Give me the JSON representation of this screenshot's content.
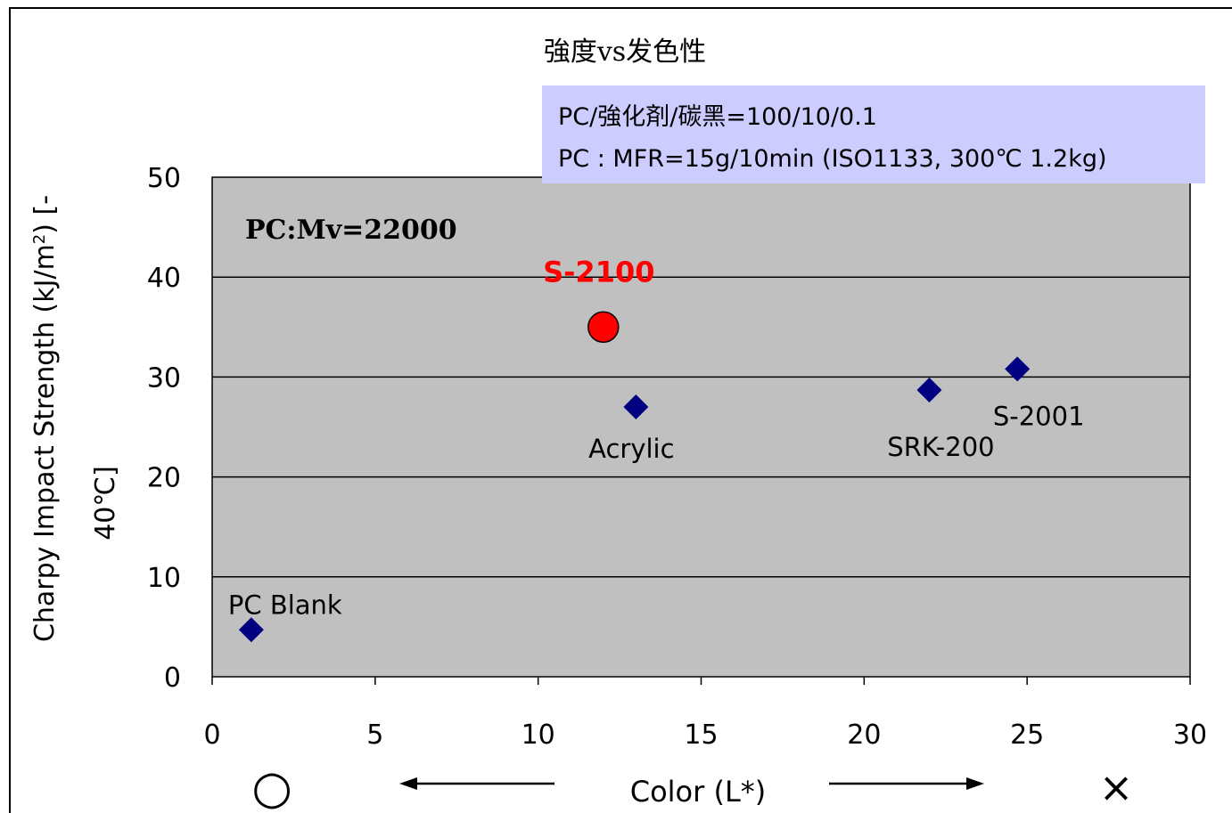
{
  "chart_data": {
    "type": "scatter",
    "title": "強度vs发色性",
    "xlabel": "Color (L*)",
    "ylabel": "Charpy Impact Strength (kJ/m²) [-40℃]",
    "xlim": [
      0,
      30
    ],
    "ylim": [
      0,
      50
    ],
    "x_ticks": [
      "0",
      "5",
      "10",
      "15",
      "20",
      "25",
      "30"
    ],
    "y_ticks": [
      "0",
      "10",
      "20",
      "30",
      "40",
      "50"
    ],
    "grid": true,
    "points": [
      {
        "label": "PC Blank",
        "x": 1.2,
        "y": 4.7,
        "marker": "diamond",
        "color": "#000080"
      },
      {
        "label": "Acrylic",
        "x": 13.0,
        "y": 27.0,
        "marker": "diamond",
        "color": "#000080"
      },
      {
        "label": "SRK-200",
        "x": 22.0,
        "y": 28.7,
        "marker": "diamond",
        "color": "#000080"
      },
      {
        "label": "S-2001",
        "x": 24.7,
        "y": 30.8,
        "marker": "diamond",
        "color": "#000080"
      },
      {
        "label": "S-2100",
        "x": 12.0,
        "y": 35.0,
        "marker": "circle",
        "color": "#ff0000"
      }
    ],
    "annotations": {
      "polymer": "PC:Mv=22000",
      "info_line1": "PC/強化剤/碳黑=100/10/0.1",
      "info_line2": "PC : MFR=15g/10min (ISO1133, 300℃  1.2kg)"
    },
    "direction": {
      "good_symbol": "○",
      "bad_symbol": "×"
    },
    "colors": {
      "plot_background": "#c0c0c0",
      "info_box": "#ccccff",
      "diamond": "#000080",
      "highlight": "#ff0000"
    }
  }
}
